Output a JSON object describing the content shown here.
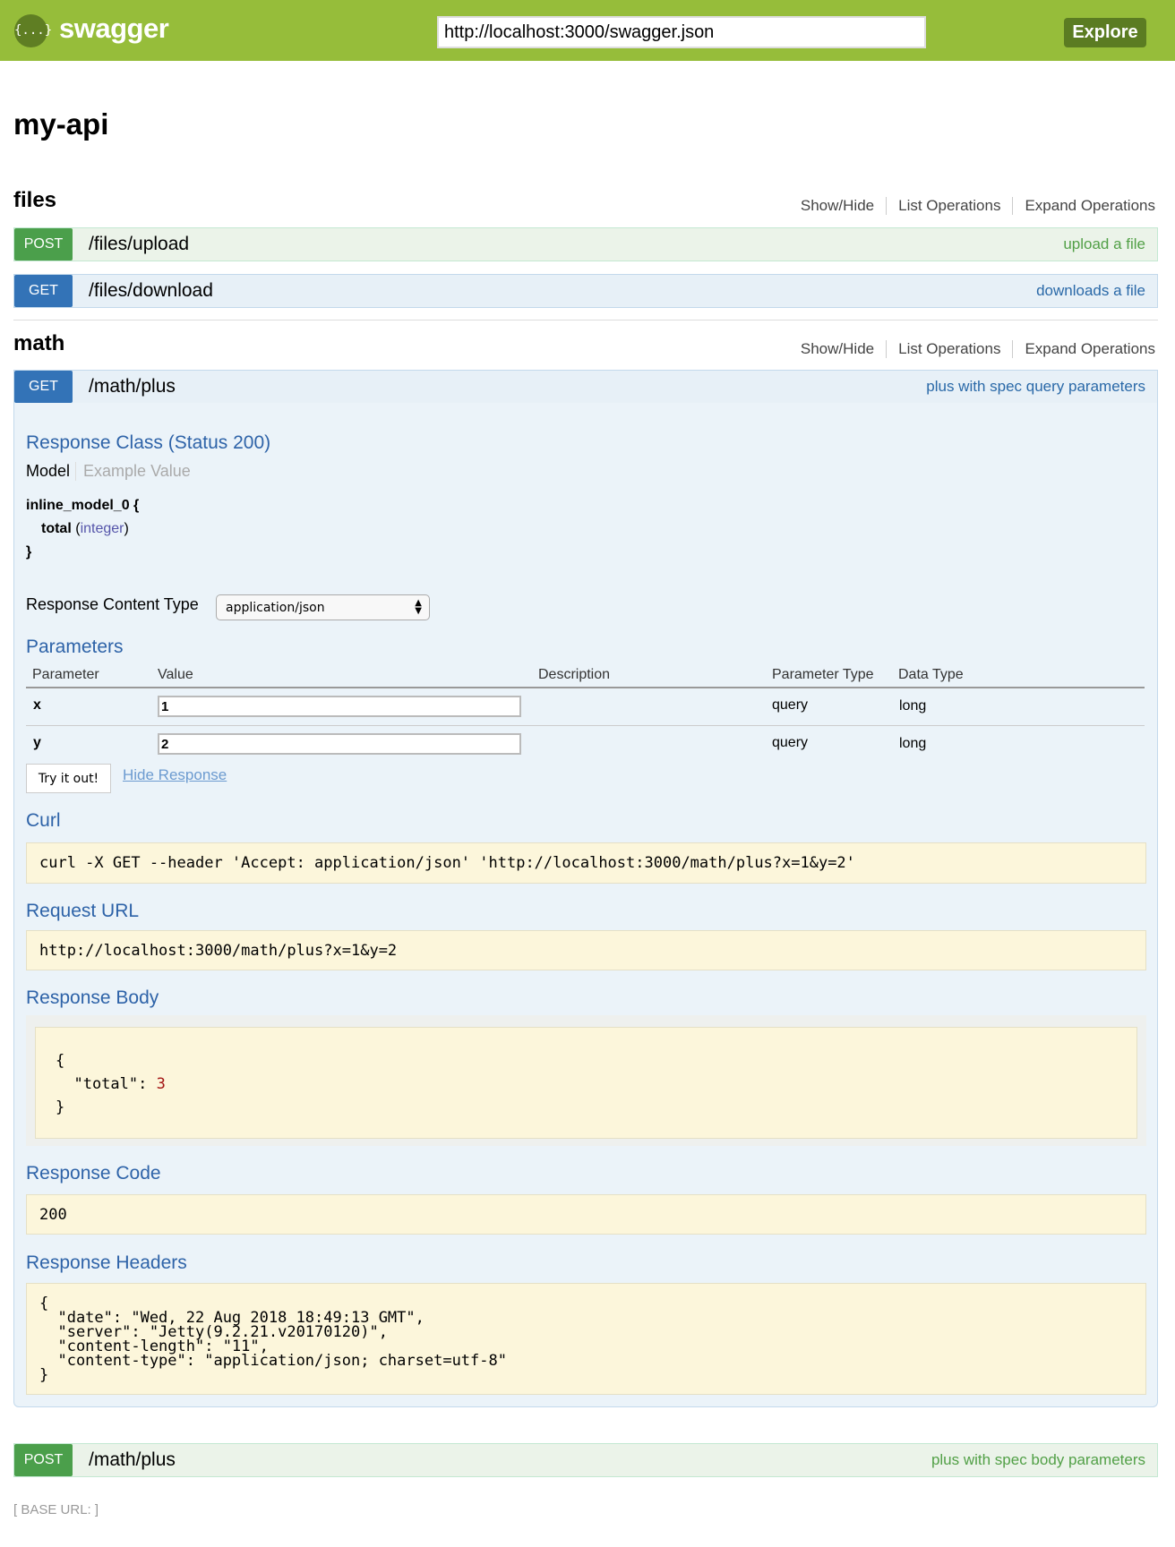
{
  "header": {
    "brand": "swagger",
    "logo_glyph": "{...}",
    "url": "http://localhost:3000/swagger.json",
    "explore": "Explore"
  },
  "title": "my-api",
  "resource_links": {
    "show_hide": "Show/Hide",
    "list": "List Operations",
    "expand": "Expand Operations"
  },
  "resources": [
    {
      "name": "files",
      "operations": [
        {
          "method": "POST",
          "path": "/files/upload",
          "summary": "upload a file"
        },
        {
          "method": "GET",
          "path": "/files/download",
          "summary": "downloads a file"
        }
      ]
    },
    {
      "name": "math",
      "operations": [
        {
          "method": "GET",
          "path": "/math/plus",
          "summary": "plus with spec query parameters"
        },
        {
          "method": "POST",
          "path": "/math/plus",
          "summary": "plus with spec body parameters"
        }
      ]
    }
  ],
  "expanded": {
    "response_class": "Response Class (Status 200)",
    "tabs": {
      "model": "Model",
      "example": "Example Value"
    },
    "model": {
      "name": "inline_model_0 {",
      "prop": "total",
      "type": "integer",
      "close": "}"
    },
    "content_type_label": "Response Content Type",
    "content_type": "application/json",
    "parameters_title": "Parameters",
    "columns": [
      "Parameter",
      "Value",
      "Description",
      "Parameter Type",
      "Data Type"
    ],
    "params": [
      {
        "name": "x",
        "value": "1",
        "description": "",
        "ptype": "query",
        "dtype": "long"
      },
      {
        "name": "y",
        "value": "2",
        "description": "",
        "ptype": "query",
        "dtype": "long"
      }
    ],
    "try_button": "Try it out!",
    "hide_response": "Hide Response",
    "curl_title": "Curl",
    "curl": "curl -X GET --header 'Accept: application/json' 'http://localhost:3000/math/plus?x=1&y=2'",
    "request_url_title": "Request URL",
    "request_url": "http://localhost:3000/math/plus?x=1&y=2",
    "response_body_title": "Response Body",
    "response_body_open": "{",
    "response_body_key": "  \"total\": ",
    "response_body_value": "3",
    "response_body_close": "}",
    "response_code_title": "Response Code",
    "response_code": "200",
    "response_headers_title": "Response Headers",
    "response_headers": "{\n  \"date\": \"Wed, 22 Aug 2018 18:49:13 GMT\",\n  \"server\": \"Jetty(9.2.21.v20170120)\",\n  \"content-length\": \"11\",\n  \"content-type\": \"application/json; charset=utf-8\"\n}"
  },
  "footer": {
    "base_url": "BASE URL: "
  },
  "colors": {
    "header": "#96bd3a",
    "post": "#4b9f4b",
    "get": "#3373b7",
    "heading": "#2e63a8"
  }
}
